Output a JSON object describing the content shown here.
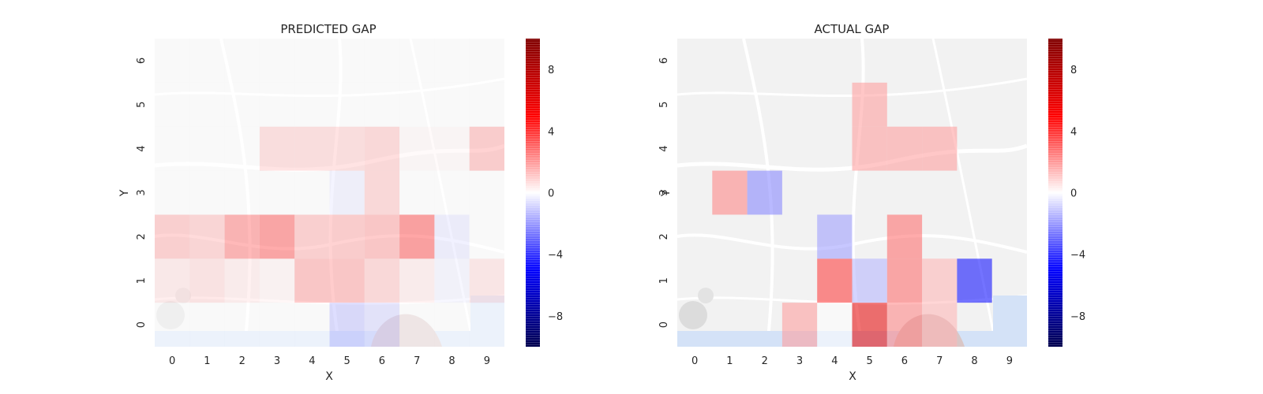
{
  "chart_data": [
    {
      "type": "heatmap",
      "title": "PREDICTED GAP",
      "xlabel": "X",
      "ylabel": "Y",
      "x_ticks": [
        "0",
        "1",
        "2",
        "3",
        "4",
        "5",
        "6",
        "7",
        "8",
        "9"
      ],
      "y_ticks": [
        "0",
        "1",
        "2",
        "3",
        "4",
        "5",
        "6"
      ],
      "colorbar": {
        "range": [
          -10,
          10
        ],
        "ticks": [
          "8",
          "4",
          "0",
          "−4",
          "−8"
        ],
        "colormap": "seismic"
      },
      "background": "street map",
      "cells": [
        {
          "x": 0,
          "y": 0,
          "v": 0
        },
        {
          "x": 1,
          "y": 0,
          "v": 0
        },
        {
          "x": 2,
          "y": 0,
          "v": 0
        },
        {
          "x": 3,
          "y": 0,
          "v": 0
        },
        {
          "x": 4,
          "y": 0,
          "v": 0
        },
        {
          "x": 5,
          "y": 0,
          "v": -1.2
        },
        {
          "x": 6,
          "y": 0,
          "v": -0.8
        },
        {
          "x": 7,
          "y": 0,
          "v": 0
        },
        {
          "x": 8,
          "y": 0,
          "v": 0
        },
        {
          "x": 9,
          "y": 0,
          "v": 0
        },
        {
          "x": 0,
          "y": 1,
          "v": 0.6
        },
        {
          "x": 1,
          "y": 1,
          "v": 0.8
        },
        {
          "x": 2,
          "y": 1,
          "v": 0.5
        },
        {
          "x": 3,
          "y": 1,
          "v": 0.3
        },
        {
          "x": 4,
          "y": 1,
          "v": 1.8
        },
        {
          "x": 5,
          "y": 1,
          "v": 1.8
        },
        {
          "x": 6,
          "y": 1,
          "v": 1.2
        },
        {
          "x": 7,
          "y": 1,
          "v": 0.5
        },
        {
          "x": 8,
          "y": 1,
          "v": -0.3
        },
        {
          "x": 9,
          "y": 1,
          "v": 0.7
        },
        {
          "x": 0,
          "y": 2,
          "v": 1.5
        },
        {
          "x": 1,
          "y": 2,
          "v": 1.3
        },
        {
          "x": 2,
          "y": 2,
          "v": 2.5
        },
        {
          "x": 3,
          "y": 2,
          "v": 3.0
        },
        {
          "x": 4,
          "y": 2,
          "v": 1.5
        },
        {
          "x": 5,
          "y": 2,
          "v": 1.6
        },
        {
          "x": 6,
          "y": 2,
          "v": 1.8
        },
        {
          "x": 7,
          "y": 2,
          "v": 3.2
        },
        {
          "x": 8,
          "y": 2,
          "v": -0.5
        },
        {
          "x": 9,
          "y": 2,
          "v": 0
        },
        {
          "x": 0,
          "y": 3,
          "v": 0
        },
        {
          "x": 1,
          "y": 3,
          "v": 0
        },
        {
          "x": 2,
          "y": 3,
          "v": 0
        },
        {
          "x": 3,
          "y": 3,
          "v": 0
        },
        {
          "x": 4,
          "y": 3,
          "v": 0
        },
        {
          "x": 5,
          "y": 3,
          "v": -0.4
        },
        {
          "x": 6,
          "y": 3,
          "v": 1.2
        },
        {
          "x": 7,
          "y": 3,
          "v": 0
        },
        {
          "x": 8,
          "y": 3,
          "v": 0
        },
        {
          "x": 9,
          "y": 3,
          "v": 0
        },
        {
          "x": 0,
          "y": 4,
          "v": 0
        },
        {
          "x": 1,
          "y": 4,
          "v": 0
        },
        {
          "x": 2,
          "y": 4,
          "v": 0
        },
        {
          "x": 3,
          "y": 4,
          "v": 1.0
        },
        {
          "x": 4,
          "y": 4,
          "v": 1.0
        },
        {
          "x": 5,
          "y": 4,
          "v": 1.0
        },
        {
          "x": 6,
          "y": 4,
          "v": 1.2
        },
        {
          "x": 7,
          "y": 4,
          "v": 0.2
        },
        {
          "x": 8,
          "y": 4,
          "v": 0.2
        },
        {
          "x": 9,
          "y": 4,
          "v": 1.6
        },
        {
          "x": 0,
          "y": 5,
          "v": 0
        },
        {
          "x": 1,
          "y": 5,
          "v": 0
        },
        {
          "x": 2,
          "y": 5,
          "v": 0
        },
        {
          "x": 3,
          "y": 5,
          "v": 0
        },
        {
          "x": 4,
          "y": 5,
          "v": 0
        },
        {
          "x": 5,
          "y": 5,
          "v": 0
        },
        {
          "x": 6,
          "y": 5,
          "v": 0
        },
        {
          "x": 7,
          "y": 5,
          "v": 0
        },
        {
          "x": 8,
          "y": 5,
          "v": 0
        },
        {
          "x": 9,
          "y": 5,
          "v": 0
        },
        {
          "x": 0,
          "y": 6,
          "v": 0
        },
        {
          "x": 1,
          "y": 6,
          "v": 0
        },
        {
          "x": 2,
          "y": 6,
          "v": 0
        },
        {
          "x": 3,
          "y": 6,
          "v": 0
        },
        {
          "x": 4,
          "y": 6,
          "v": 0
        },
        {
          "x": 5,
          "y": 6,
          "v": 0
        },
        {
          "x": 6,
          "y": 6,
          "v": 0
        },
        {
          "x": 7,
          "y": 6,
          "v": 0
        },
        {
          "x": 8,
          "y": 6,
          "v": 0
        },
        {
          "x": 9,
          "y": 6,
          "v": 0
        }
      ]
    },
    {
      "type": "heatmap",
      "title": "ACTUAL GAP",
      "xlabel": "X",
      "ylabel": "Y",
      "x_ticks": [
        "0",
        "1",
        "2",
        "3",
        "4",
        "5",
        "6",
        "7",
        "8",
        "9"
      ],
      "y_ticks": [
        "0",
        "1",
        "2",
        "3",
        "4",
        "5",
        "6"
      ],
      "colorbar": {
        "range": [
          -10,
          10
        ],
        "ticks": [
          "8",
          "4",
          "0",
          "−4",
          "−8"
        ],
        "colormap": "seismic"
      },
      "background": "street map",
      "cells": [
        {
          "x": 3,
          "y": 0,
          "v": 2.0
        },
        {
          "x": 4,
          "y": 0,
          "v": 0
        },
        {
          "x": 5,
          "y": 0,
          "v": 6.0
        },
        {
          "x": 6,
          "y": 0,
          "v": 2.5
        },
        {
          "x": 7,
          "y": 0,
          "v": 1.5
        },
        {
          "x": 4,
          "y": 1,
          "v": 4.0
        },
        {
          "x": 5,
          "y": 1,
          "v": -1.5
        },
        {
          "x": 6,
          "y": 1,
          "v": 3.0
        },
        {
          "x": 7,
          "y": 1,
          "v": 1.5
        },
        {
          "x": 8,
          "y": 1,
          "v": -5.0
        },
        {
          "x": 4,
          "y": 2,
          "v": -2.0
        },
        {
          "x": 6,
          "y": 2,
          "v": 3.0
        },
        {
          "x": 1,
          "y": 3,
          "v": 2.5
        },
        {
          "x": 2,
          "y": 3,
          "v": -2.5
        },
        {
          "x": 5,
          "y": 4,
          "v": 2.0
        },
        {
          "x": 6,
          "y": 4,
          "v": 2.0
        },
        {
          "x": 7,
          "y": 4,
          "v": 2.0
        },
        {
          "x": 5,
          "y": 5,
          "v": 2.0
        }
      ]
    }
  ]
}
